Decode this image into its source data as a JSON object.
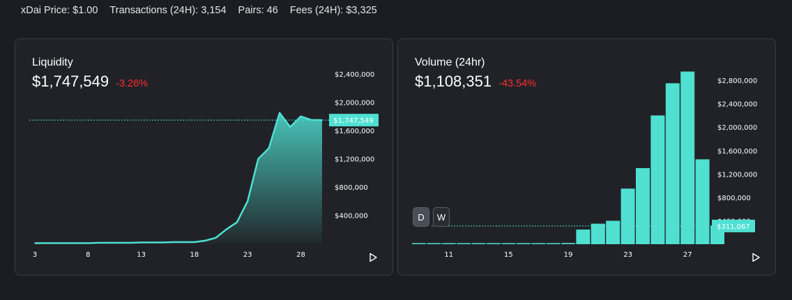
{
  "stats": {
    "price": "xDai Price: $1.00",
    "transactions": "Transactions (24H): 3,154",
    "pairs": "Pairs: 46",
    "fees": "Fees (24H): $3,325"
  },
  "liquidity_card": {
    "title": "Liquidity",
    "value": "$1,747,549",
    "change": "-3.26%",
    "current_label": "$1,747,549"
  },
  "volume_card": {
    "title": "Volume (24hr)",
    "value": "$1,108,351",
    "change": "-43.54%",
    "current_label": "$311,067",
    "day_button": "D",
    "week_button": "W"
  },
  "colors": {
    "accent": "#4fe0d2",
    "negative": "#ff2d2d"
  },
  "icons": {
    "play": "play-icon"
  },
  "chart_data": [
    {
      "type": "area",
      "name": "liquidity",
      "x": [
        3,
        4,
        5,
        6,
        7,
        8,
        9,
        10,
        11,
        12,
        13,
        14,
        15,
        16,
        17,
        18,
        19,
        20,
        21,
        22,
        23,
        24,
        25,
        26,
        27,
        28,
        29,
        30
      ],
      "values": [
        5000,
        5000,
        5000,
        5000,
        5000,
        5000,
        10000,
        10000,
        10000,
        10000,
        15000,
        15000,
        15000,
        20000,
        20000,
        20000,
        40000,
        80000,
        200000,
        300000,
        600000,
        1200000,
        1350000,
        1850000,
        1650000,
        1800000,
        1750000,
        1747549
      ],
      "xticks": [
        3,
        8,
        13,
        18,
        23,
        28
      ],
      "yticks": [
        400000,
        800000,
        1200000,
        1600000,
        2000000,
        2400000
      ],
      "ytick_labels": [
        "$400,000",
        "$800,000",
        "$1,200,000",
        "$1,600,000",
        "$2,000,000",
        "$2,400,000"
      ],
      "ylim": [
        0,
        2500000
      ]
    },
    {
      "type": "bar",
      "name": "volume",
      "x": [
        9,
        10,
        11,
        12,
        13,
        14,
        15,
        16,
        17,
        18,
        19,
        20,
        21,
        22,
        23,
        24,
        25,
        26,
        27,
        28,
        29
      ],
      "values": [
        5000,
        5000,
        5000,
        5000,
        5000,
        5000,
        5000,
        5000,
        5000,
        5000,
        20000,
        250000,
        350000,
        400000,
        950000,
        1300000,
        2200000,
        2750000,
        2950000,
        1450000,
        311067
      ],
      "xticks": [
        11,
        15,
        19,
        23,
        27
      ],
      "yticks": [
        400000,
        800000,
        1200000,
        1600000,
        2000000,
        2400000,
        2800000
      ],
      "ytick_labels": [
        "$400,000",
        "$800,000",
        "$1,200,000",
        "$1,600,000",
        "$2,000,000",
        "$2,400,000",
        "$2,800,000"
      ],
      "ylim": [
        0,
        3040000
      ]
    }
  ]
}
